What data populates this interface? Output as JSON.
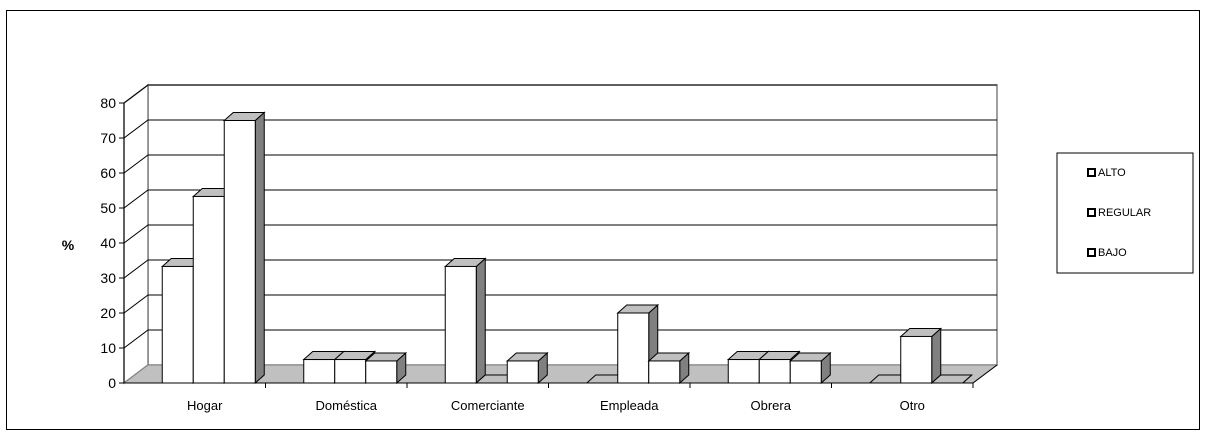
{
  "chart_data": {
    "type": "bar",
    "ylabel": "%",
    "ylim": [
      0,
      80
    ],
    "yticks": [
      "0",
      "10",
      "20",
      "30",
      "40",
      "50",
      "60",
      "70",
      "80"
    ],
    "categories": [
      "Hogar",
      "Doméstica",
      "Comerciante",
      "Empleada",
      "Obrera",
      "Otro"
    ],
    "series": [
      {
        "name": "ALTO",
        "values": [
          33.3,
          6.7,
          33.3,
          0,
          6.7,
          0
        ]
      },
      {
        "name": "REGULAR",
        "values": [
          53.3,
          6.7,
          0,
          20,
          6.7,
          13.3
        ]
      },
      {
        "name": "BAJO",
        "values": [
          75,
          6.3,
          6.3,
          6.3,
          6.3,
          0
        ]
      }
    ],
    "legend_position": "right",
    "grid": true,
    "colors": {
      "bar_front": "#ffffff",
      "bar_top": "#c0c0c0",
      "bar_side": "#808080",
      "floor": "#c0c0c0",
      "wall": "#ffffff",
      "outline": "#000000"
    }
  }
}
